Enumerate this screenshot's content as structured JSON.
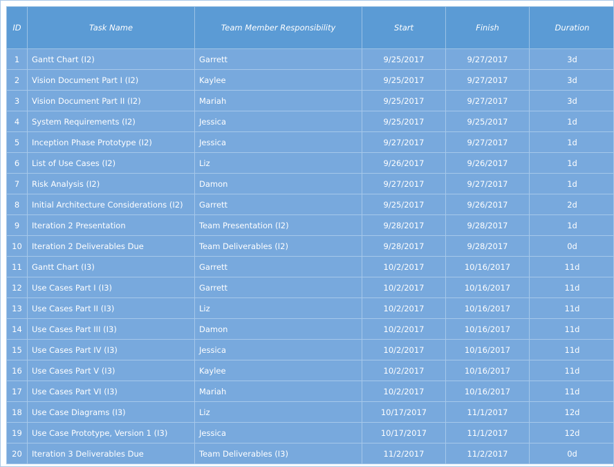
{
  "headers": {
    "id": "ID",
    "task": "Task Name",
    "member": "Team Member Responsibility",
    "start": "Start",
    "finish": "Finish",
    "duration": "Duration"
  },
  "rows": [
    {
      "id": "1",
      "task": "Gantt Chart  (I2)",
      "member": "Garrett",
      "start": "9/25/2017",
      "finish": "9/27/2017",
      "duration": "3d"
    },
    {
      "id": "2",
      "task": "Vision Document Part I (I2)",
      "member": "Kaylee",
      "start": "9/25/2017",
      "finish": "9/27/2017",
      "duration": "3d"
    },
    {
      "id": "3",
      "task": "Vision Document Part II (I2)",
      "member": "Mariah",
      "start": "9/25/2017",
      "finish": "9/27/2017",
      "duration": "3d"
    },
    {
      "id": "4",
      "task": "System Requirements  (I2)",
      "member": "Jessica",
      "start": "9/25/2017",
      "finish": "9/25/2017",
      "duration": "1d"
    },
    {
      "id": "5",
      "task": "Inception Phase Prototype (I2)",
      "member": "Jessica",
      "start": "9/27/2017",
      "finish": "9/27/2017",
      "duration": "1d"
    },
    {
      "id": "6",
      "task": "List of Use Cases  (I2)",
      "member": "Liz",
      "start": "9/26/2017",
      "finish": "9/26/2017",
      "duration": "1d"
    },
    {
      "id": "7",
      "task": "Risk Analysis  (I2)",
      "member": "Damon",
      "start": "9/27/2017",
      "finish": "9/27/2017",
      "duration": "1d"
    },
    {
      "id": "8",
      "task": "Initial Architecture Considerations  (I2)",
      "member": "Garrett",
      "start": "9/25/2017",
      "finish": "9/26/2017",
      "duration": "2d"
    },
    {
      "id": "9",
      "task": "Iteration 2 Presentation",
      "member": "Team Presentation (I2)",
      "start": "9/28/2017",
      "finish": "9/28/2017",
      "duration": "1d"
    },
    {
      "id": "10",
      "task": "Iteration 2 Deliverables Due",
      "member": "Team Deliverables (I2)",
      "start": "9/28/2017",
      "finish": "9/28/2017",
      "duration": "0d"
    },
    {
      "id": "11",
      "task": "Gantt Chart (I3)",
      "member": "Garrett",
      "start": "10/2/2017",
      "finish": "10/16/2017",
      "duration": "11d"
    },
    {
      "id": "12",
      "task": "Use Cases Part I (I3)",
      "member": "Garrett",
      "start": "10/2/2017",
      "finish": "10/16/2017",
      "duration": "11d"
    },
    {
      "id": "13",
      "task": "Use Cases Part II (I3)",
      "member": "Liz",
      "start": "10/2/2017",
      "finish": "10/16/2017",
      "duration": "11d"
    },
    {
      "id": "14",
      "task": "Use Cases Part III (I3)",
      "member": "Damon",
      "start": "10/2/2017",
      "finish": "10/16/2017",
      "duration": "11d"
    },
    {
      "id": "15",
      "task": "Use Cases Part IV (I3)",
      "member": "Jessica",
      "start": "10/2/2017",
      "finish": "10/16/2017",
      "duration": "11d"
    },
    {
      "id": "16",
      "task": "Use Cases Part V (I3)",
      "member": "Kaylee",
      "start": "10/2/2017",
      "finish": "10/16/2017",
      "duration": "11d"
    },
    {
      "id": "17",
      "task": "Use Cases Part VI (I3)",
      "member": "Mariah",
      "start": "10/2/2017",
      "finish": "10/16/2017",
      "duration": "11d"
    },
    {
      "id": "18",
      "task": "Use Case Diagrams (I3)",
      "member": "Liz",
      "start": "10/17/2017",
      "finish": "11/1/2017",
      "duration": "12d"
    },
    {
      "id": "19",
      "task": "Use Case Prototype, Version 1 (I3)",
      "member": "Jessica",
      "start": "10/17/2017",
      "finish": "11/1/2017",
      "duration": "12d"
    },
    {
      "id": "20",
      "task": "Iteration 3 Deliverables Due",
      "member": "Team Deliverables (I3)",
      "start": "11/2/2017",
      "finish": "11/2/2017",
      "duration": "0d"
    }
  ]
}
